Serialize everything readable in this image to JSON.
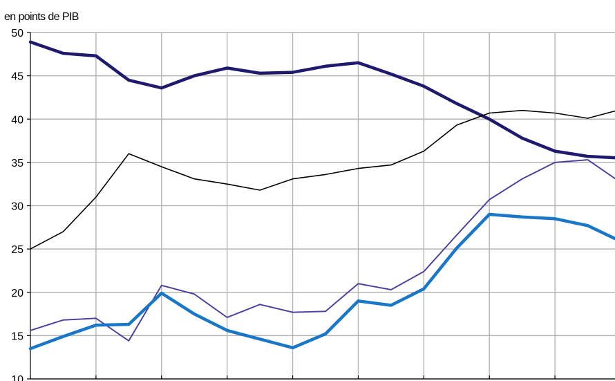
{
  "chart_data": {
    "type": "line",
    "unit_label": "en points de PIB",
    "ylim": [
      10,
      50
    ],
    "yticks": [
      "50",
      "45",
      "40",
      "35",
      "30",
      "25",
      "20",
      "15",
      "10"
    ],
    "grid": true,
    "x": [
      0,
      0.5,
      1,
      1.5,
      2,
      2.5,
      3,
      3.5,
      4,
      4.5,
      5,
      5.5,
      6,
      6.5,
      7,
      7.5,
      8,
      8.5,
      9
    ],
    "series": [
      {
        "color": "#1f1a6e",
        "style": "thick",
        "values": [
          48.9,
          47.6,
          47.3,
          44.5,
          43.6,
          45.0,
          45.9,
          45.3,
          45.4,
          46.1,
          46.5,
          45.2,
          43.8,
          41.8,
          40.0,
          37.8,
          36.3,
          35.7,
          35.5
        ]
      },
      {
        "color": "#000000",
        "style": "thin",
        "values": [
          25.0,
          27.0,
          31.0,
          36.0,
          34.5,
          33.1,
          32.5,
          31.8,
          33.1,
          33.6,
          34.3,
          34.7,
          36.3,
          39.3,
          40.7,
          41.0,
          40.7,
          40.1,
          41.1
        ]
      },
      {
        "color": "#4a3fa0",
        "style": "dotted",
        "values": [
          15.6,
          16.8,
          17.0,
          14.4,
          20.8,
          19.8,
          17.1,
          18.6,
          17.7,
          17.8,
          21.0,
          20.3,
          22.4,
          26.6,
          30.7,
          33.1,
          35.0,
          35.3,
          32.7
        ]
      },
      {
        "color": "#1877c9",
        "style": "thick",
        "values": [
          13.5,
          14.9,
          16.2,
          16.3,
          19.9,
          17.5,
          15.6,
          14.6,
          13.6,
          15.2,
          19.0,
          18.5,
          20.4,
          25.1,
          29.0,
          28.7,
          28.5,
          27.7,
          25.9
        ]
      }
    ]
  }
}
